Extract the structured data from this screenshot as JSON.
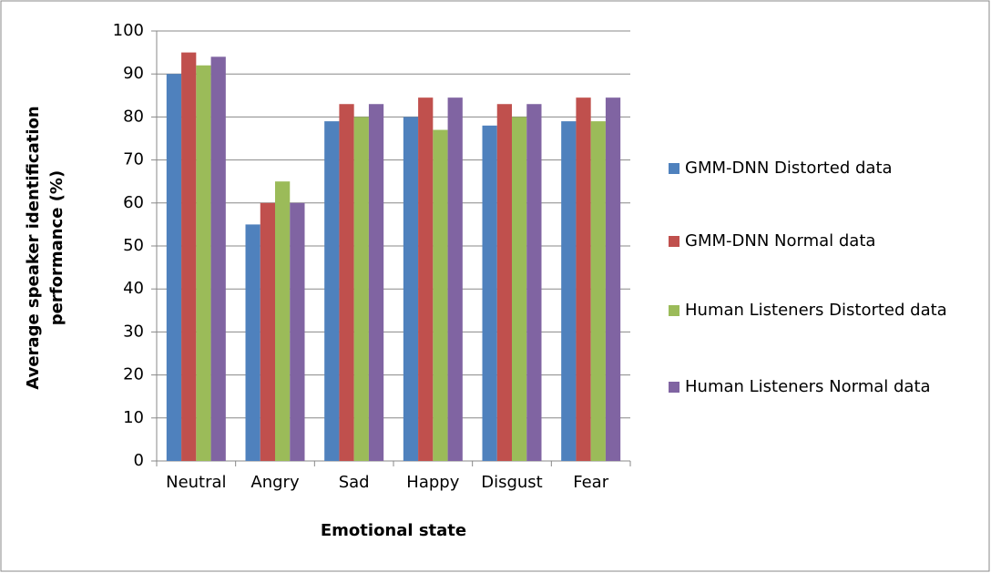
{
  "chart_data": {
    "type": "bar",
    "x_label": "Emotional state",
    "y_label": "Average speaker identification performance (%)",
    "categories": [
      "Neutral",
      "Angry",
      "Sad",
      "Happy",
      "Disgust",
      "Fear"
    ],
    "series": [
      {
        "name": "GMM-DNN Distorted data",
        "color": "#4f81bd",
        "values": [
          90,
          55,
          79,
          80,
          78,
          79
        ]
      },
      {
        "name": "GMM-DNN Normal data",
        "color": "#c0504d",
        "values": [
          95,
          60,
          83,
          84.5,
          83,
          84.5
        ]
      },
      {
        "name": "Human Listeners Distorted data",
        "color": "#9bbb59",
        "values": [
          92,
          65,
          80,
          77,
          80,
          79
        ]
      },
      {
        "name": "Human Listeners Normal data",
        "color": "#8064a2",
        "values": [
          94,
          60,
          83,
          84.5,
          83,
          84.5
        ]
      }
    ],
    "ylim": [
      0,
      100
    ],
    "yticks": [
      0,
      10,
      20,
      30,
      40,
      50,
      60,
      70,
      80,
      90,
      100
    ],
    "grid": true,
    "legend": "right"
  }
}
